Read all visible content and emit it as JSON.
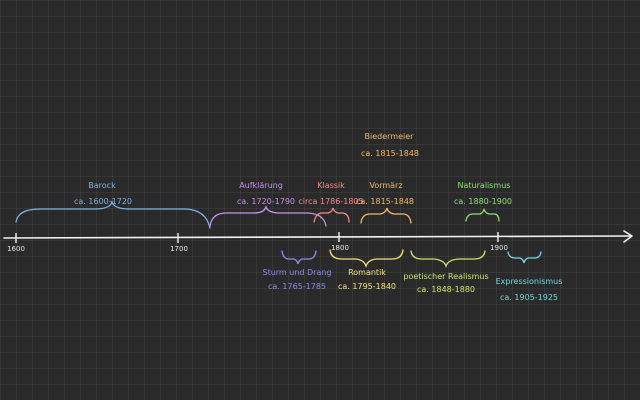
{
  "timeline": {
    "ticks": [
      {
        "label": "1600"
      },
      {
        "label": "1700"
      },
      {
        "label": "1800"
      },
      {
        "label": "1900"
      }
    ],
    "epochs": [
      {
        "id": "barock",
        "name": "Barock",
        "range": "ca. 1600-1720",
        "color": "#7fb2e5"
      },
      {
        "id": "aufklaerung",
        "name": "Aufklärung",
        "range": "ca. 1720-1790",
        "color": "#c792ea"
      },
      {
        "id": "klassik",
        "name": "Klassik",
        "range": "circa 1786-1805",
        "color": "#f48a8a"
      },
      {
        "id": "vormaerz",
        "name": "Vormärz",
        "range": "ca. 1815-1848",
        "color": "#f0b96a"
      },
      {
        "id": "biedermeier",
        "name": "Biedermeier",
        "range": "ca. 1815-1848",
        "color": "#f0b96a"
      },
      {
        "id": "naturalismus",
        "name": "Naturalismus",
        "range": "ca. 1880-1900",
        "color": "#8ee07a"
      },
      {
        "id": "sturm-und-drang",
        "name": "Sturm und Drang",
        "range": "ca. 1765-1785",
        "color": "#8a8cf0"
      },
      {
        "id": "romantik",
        "name": "Romantik",
        "range": "ca. 1795-1840",
        "color": "#f4e37a"
      },
      {
        "id": "poetischer-realismus",
        "name": "poetischer Realismus",
        "range": "ca. 1848-1880",
        "color": "#c8e86a"
      },
      {
        "id": "expressionismus",
        "name": "Expressionismus",
        "range": "ca. 1905-1925",
        "color": "#7ad7e0"
      }
    ]
  }
}
